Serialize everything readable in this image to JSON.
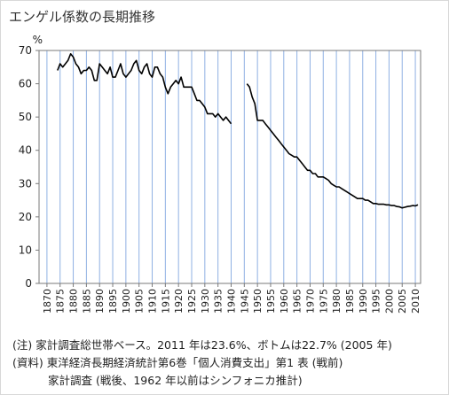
{
  "title": "エンゲル係数の長期推移",
  "chart_data": {
    "type": "line",
    "title": "エンゲル係数の長期推移",
    "ylabel": "%",
    "xlabel": "",
    "ylim": [
      0,
      70
    ],
    "xlim": [
      1867,
      2012
    ],
    "grid": "vertical",
    "y_ticks": [
      0,
      10,
      20,
      30,
      40,
      50,
      60,
      70
    ],
    "x_ticks": [
      1870,
      1875,
      1880,
      1885,
      1890,
      1895,
      1900,
      1905,
      1910,
      1915,
      1920,
      1925,
      1930,
      1935,
      1940,
      1945,
      1950,
      1955,
      1960,
      1965,
      1970,
      1975,
      1980,
      1985,
      1990,
      1995,
      2000,
      2005,
      2010
    ],
    "series": [
      {
        "segment": "prewar",
        "color": "#000000",
        "points": [
          [
            1874,
            64
          ],
          [
            1875,
            66
          ],
          [
            1876,
            65
          ],
          [
            1877,
            66
          ],
          [
            1878,
            67
          ],
          [
            1879,
            69
          ],
          [
            1880,
            68
          ],
          [
            1881,
            66
          ],
          [
            1882,
            65
          ],
          [
            1883,
            63
          ],
          [
            1884,
            64
          ],
          [
            1885,
            64
          ],
          [
            1886,
            65
          ],
          [
            1887,
            64
          ],
          [
            1888,
            61
          ],
          [
            1889,
            61
          ],
          [
            1890,
            66
          ],
          [
            1891,
            65
          ],
          [
            1892,
            64
          ],
          [
            1893,
            63
          ],
          [
            1894,
            65
          ],
          [
            1895,
            62
          ],
          [
            1896,
            62
          ],
          [
            1897,
            64
          ],
          [
            1898,
            66
          ],
          [
            1899,
            63
          ],
          [
            1900,
            62
          ],
          [
            1901,
            63
          ],
          [
            1902,
            64
          ],
          [
            1903,
            66
          ],
          [
            1904,
            67
          ],
          [
            1905,
            64
          ],
          [
            1906,
            63
          ],
          [
            1907,
            65
          ],
          [
            1908,
            66
          ],
          [
            1909,
            63
          ],
          [
            1910,
            62
          ],
          [
            1911,
            65
          ],
          [
            1912,
            65
          ],
          [
            1913,
            63
          ],
          [
            1914,
            62
          ],
          [
            1915,
            59
          ],
          [
            1916,
            57
          ],
          [
            1917,
            59
          ],
          [
            1918,
            60
          ],
          [
            1919,
            61
          ],
          [
            1920,
            60
          ],
          [
            1921,
            62
          ],
          [
            1922,
            59
          ],
          [
            1923,
            59
          ],
          [
            1924,
            59
          ],
          [
            1925,
            59
          ],
          [
            1926,
            57
          ],
          [
            1927,
            55
          ],
          [
            1928,
            55
          ],
          [
            1929,
            54
          ],
          [
            1930,
            53
          ],
          [
            1931,
            51
          ],
          [
            1932,
            51
          ],
          [
            1933,
            51
          ],
          [
            1934,
            50
          ],
          [
            1935,
            51
          ],
          [
            1936,
            50
          ],
          [
            1937,
            49
          ],
          [
            1938,
            50
          ],
          [
            1939,
            49
          ],
          [
            1940,
            48
          ]
        ]
      },
      {
        "segment": "postwar",
        "color": "#000000",
        "points": [
          [
            1946,
            60
          ],
          [
            1947,
            59
          ],
          [
            1948,
            56
          ],
          [
            1949,
            54
          ],
          [
            1950,
            49
          ],
          [
            1951,
            49
          ],
          [
            1952,
            49
          ],
          [
            1953,
            48
          ],
          [
            1954,
            47
          ],
          [
            1955,
            46
          ],
          [
            1956,
            45
          ],
          [
            1957,
            44
          ],
          [
            1958,
            43
          ],
          [
            1959,
            42
          ],
          [
            1960,
            41
          ],
          [
            1961,
            40
          ],
          [
            1962,
            39
          ],
          [
            1963,
            38.5
          ],
          [
            1964,
            38
          ],
          [
            1965,
            38
          ],
          [
            1966,
            37
          ],
          [
            1967,
            36
          ],
          [
            1968,
            35
          ],
          [
            1969,
            34
          ],
          [
            1970,
            34
          ],
          [
            1971,
            33
          ],
          [
            1972,
            33
          ],
          [
            1973,
            32
          ],
          [
            1974,
            32
          ],
          [
            1975,
            32
          ],
          [
            1976,
            31.5
          ],
          [
            1977,
            31
          ],
          [
            1978,
            30
          ],
          [
            1979,
            29.5
          ],
          [
            1980,
            29
          ],
          [
            1981,
            29
          ],
          [
            1982,
            28.5
          ],
          [
            1983,
            28
          ],
          [
            1984,
            27.5
          ],
          [
            1985,
            27
          ],
          [
            1986,
            26.5
          ],
          [
            1987,
            26
          ],
          [
            1988,
            25.5
          ],
          [
            1989,
            25.5
          ],
          [
            1990,
            25.5
          ],
          [
            1991,
            25
          ],
          [
            1992,
            25
          ],
          [
            1993,
            24.5
          ],
          [
            1994,
            24
          ],
          [
            1995,
            24
          ],
          [
            1996,
            23.8
          ],
          [
            1997,
            23.8
          ],
          [
            1998,
            23.8
          ],
          [
            1999,
            23.6
          ],
          [
            2000,
            23.6
          ],
          [
            2001,
            23.4
          ],
          [
            2002,
            23.4
          ],
          [
            2003,
            23.1
          ],
          [
            2004,
            23.0
          ],
          [
            2005,
            22.7
          ],
          [
            2006,
            22.9
          ],
          [
            2007,
            23.1
          ],
          [
            2008,
            23.2
          ],
          [
            2009,
            23.4
          ],
          [
            2010,
            23.3
          ],
          [
            2011,
            23.6
          ]
        ]
      }
    ]
  },
  "notes": [
    "(注) 家計調査総世帯ベース。2011 年は23.6%、ボトムは22.7% (2005 年)",
    "(資料) 東洋経済長期経済統計第6巻「個人消費支出」第1 表 (戦前)",
    "家計調査 (戦後、1962 年以前はシンフォニカ推計)"
  ]
}
